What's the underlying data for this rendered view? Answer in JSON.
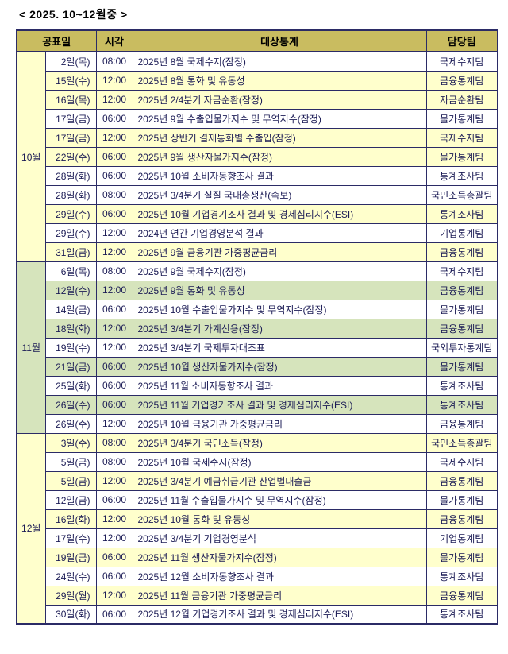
{
  "page": {
    "title": "< 2025. 10~12월중 >"
  },
  "table": {
    "headers": {
      "date": "공표일",
      "time": "시각",
      "stat": "대상통계",
      "team": "담당팀"
    },
    "colors": {
      "header_bg": "#c9bc60",
      "border": "#2b2b66",
      "text": "#1b1b55",
      "white_row": "#ffffff",
      "yellow_row": "#ffffcc",
      "green_row": "#d6e4bc"
    },
    "months": [
      {
        "label": "10월",
        "cell_bg": "#ffffcc",
        "row_highlight": "#ffffcc",
        "rows": [
          {
            "date": "2일(목)",
            "time": "08:00",
            "stat": "2025년 8월 국제수지(잠정)",
            "team": "국제수지팀",
            "highlight": false
          },
          {
            "date": "15일(수)",
            "time": "12:00",
            "stat": "2025년 8월 통화 및 유동성",
            "team": "금융통계팀",
            "highlight": true
          },
          {
            "date": "16일(목)",
            "time": "12:00",
            "stat": "2025년 2/4분기 자금순환(잠정)",
            "team": "자금순환팀",
            "highlight": true
          },
          {
            "date": "17일(금)",
            "time": "06:00",
            "stat": "2025년 9월 수출입물가지수 및 무역지수(잠정)",
            "team": "물가통계팀",
            "highlight": false
          },
          {
            "date": "17일(금)",
            "time": "12:00",
            "stat": "2025년 상반기 결제통화별 수출입(잠정)",
            "team": "국제수지팀",
            "highlight": true
          },
          {
            "date": "22일(수)",
            "time": "06:00",
            "stat": "2025년 9월 생산자물가지수(잠정)",
            "team": "물가통계팀",
            "highlight": true
          },
          {
            "date": "28일(화)",
            "time": "06:00",
            "stat": "2025년 10월 소비자동향조사 결과",
            "team": "통계조사팀",
            "highlight": false
          },
          {
            "date": "28일(화)",
            "time": "08:00",
            "stat": "2025년 3/4분기 실질 국내총생산(속보)",
            "team": "국민소득총괄팀",
            "highlight": false
          },
          {
            "date": "29일(수)",
            "time": "06:00",
            "stat": "2025년 10월 기업경기조사 결과 및 경제심리지수(ESI)",
            "team": "통계조사팀",
            "highlight": true
          },
          {
            "date": "29일(수)",
            "time": "12:00",
            "stat": "2024년 연간 기업경영분석 결과",
            "team": "기업통계팀",
            "highlight": false
          },
          {
            "date": "31일(금)",
            "time": "12:00",
            "stat": "2025년 9월 금융기관 가중평균금리",
            "team": "금융통계팀",
            "highlight": true
          }
        ]
      },
      {
        "label": "11월",
        "cell_bg": "#d6e4bc",
        "row_highlight": "#d6e4bc",
        "rows": [
          {
            "date": "6일(목)",
            "time": "08:00",
            "stat": "2025년 9월 국제수지(잠정)",
            "team": "국제수지팀",
            "highlight": false
          },
          {
            "date": "12일(수)",
            "time": "12:00",
            "stat": "2025년 9월 통화 및 유동성",
            "team": "금융통계팀",
            "highlight": true
          },
          {
            "date": "14일(금)",
            "time": "06:00",
            "stat": "2025년 10월 수출입물가지수 및 무역지수(잠정)",
            "team": "물가통계팀",
            "highlight": false
          },
          {
            "date": "18일(화)",
            "time": "12:00",
            "stat": "2025년 3/4분기 가계신용(잠정)",
            "team": "금융통계팀",
            "highlight": true
          },
          {
            "date": "19일(수)",
            "time": "12:00",
            "stat": "2025년 3/4분기 국제투자대조표",
            "team": "국외투자통계팀",
            "highlight": false
          },
          {
            "date": "21일(금)",
            "time": "06:00",
            "stat": "2025년 10월 생산자물가지수(잠정)",
            "team": "물가통계팀",
            "highlight": true
          },
          {
            "date": "25일(화)",
            "time": "06:00",
            "stat": "2025년 11월 소비자동향조사 결과",
            "team": "통계조사팀",
            "highlight": false
          },
          {
            "date": "26일(수)",
            "time": "06:00",
            "stat": "2025년 11월 기업경기조사 결과 및 경제심리지수(ESI)",
            "team": "통계조사팀",
            "highlight": true
          },
          {
            "date": "26일(수)",
            "time": "12:00",
            "stat": "2025년 10월 금융기관 가중평균금리",
            "team": "금융통계팀",
            "highlight": false
          }
        ]
      },
      {
        "label": "12월",
        "cell_bg": "#ffffcc",
        "row_highlight": "#ffffcc",
        "rows": [
          {
            "date": "3일(수)",
            "time": "08:00",
            "stat": "2025년 3/4분기 국민소득(잠정)",
            "team": "국민소득총괄팀",
            "highlight": true
          },
          {
            "date": "5일(금)",
            "time": "08:00",
            "stat": "2025년 10월 국제수지(잠정)",
            "team": "국제수지팀",
            "highlight": false
          },
          {
            "date": "5일(금)",
            "time": "12:00",
            "stat": "2025년 3/4분기 예금취급기관 산업별대출금",
            "team": "금융통계팀",
            "highlight": true
          },
          {
            "date": "12일(금)",
            "time": "06:00",
            "stat": "2025년 11월 수출입물가지수 및 무역지수(잠정)",
            "team": "물가통계팀",
            "highlight": false
          },
          {
            "date": "16일(화)",
            "time": "12:00",
            "stat": "2025년 10월 통화 및 유동성",
            "team": "금융통계팀",
            "highlight": true
          },
          {
            "date": "17일(수)",
            "time": "12:00",
            "stat": "2025년 3/4분기 기업경영분석",
            "team": "기업통계팀",
            "highlight": false
          },
          {
            "date": "19일(금)",
            "time": "06:00",
            "stat": "2025년 11월 생산자물가지수(잠정)",
            "team": "물가통계팀",
            "highlight": true
          },
          {
            "date": "24일(수)",
            "time": "06:00",
            "stat": "2025년 12월 소비자동향조사 결과",
            "team": "통계조사팀",
            "highlight": false
          },
          {
            "date": "29일(월)",
            "time": "12:00",
            "stat": "2025년 11월 금융기관 가중평균금리",
            "team": "금융통계팀",
            "highlight": true
          },
          {
            "date": "30일(화)",
            "time": "06:00",
            "stat": "2025년 12월 기업경기조사 결과 및 경제심리지수(ESI)",
            "team": "통계조사팀",
            "highlight": false
          }
        ]
      }
    ]
  }
}
